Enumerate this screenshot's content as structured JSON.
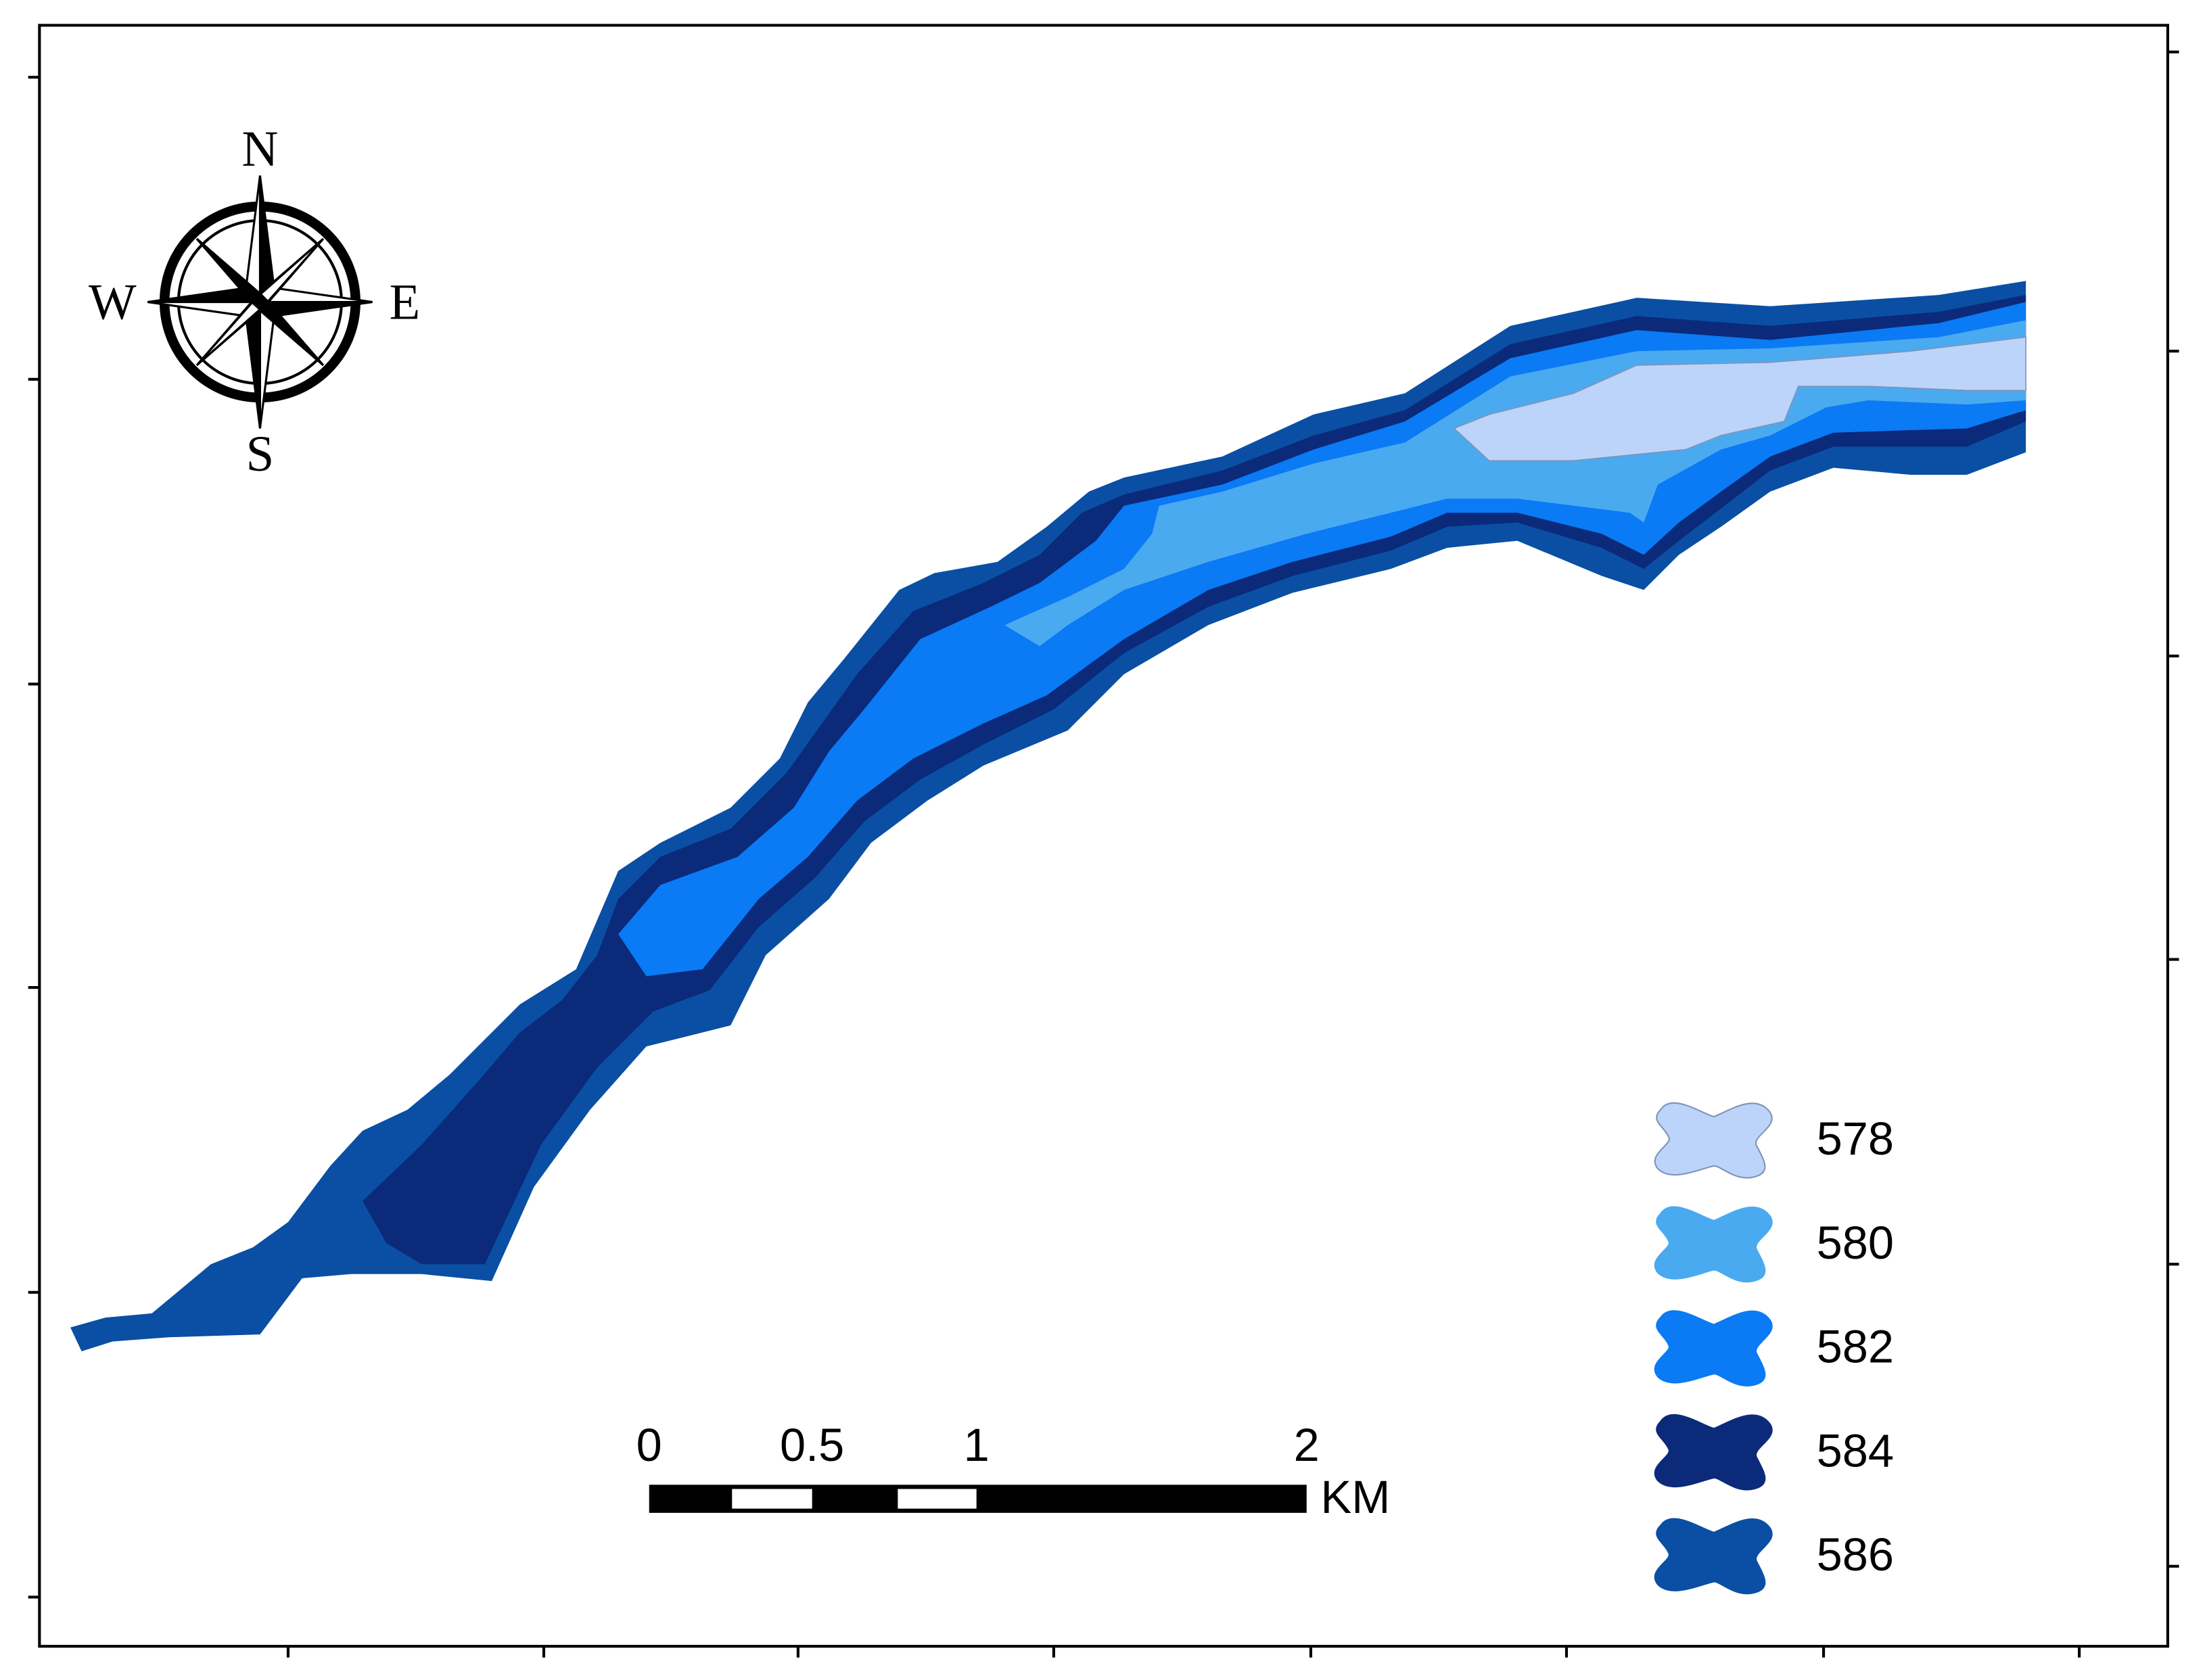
{
  "compass": {
    "north": "N",
    "south": "S",
    "west": "W",
    "east": "E"
  },
  "scale_bar": {
    "labels": [
      "0",
      "0.5",
      "1",
      "2"
    ],
    "unit": "KM"
  },
  "legend": [
    {
      "label": "578",
      "color": "#bcd4fa"
    },
    {
      "label": "580",
      "color": "#4aaaf0"
    },
    {
      "label": "582",
      "color": "#0a7af5"
    },
    {
      "label": "584",
      "color": "#0b2a7a"
    },
    {
      "label": "586",
      "color": "#0a4fa3"
    }
  ]
}
